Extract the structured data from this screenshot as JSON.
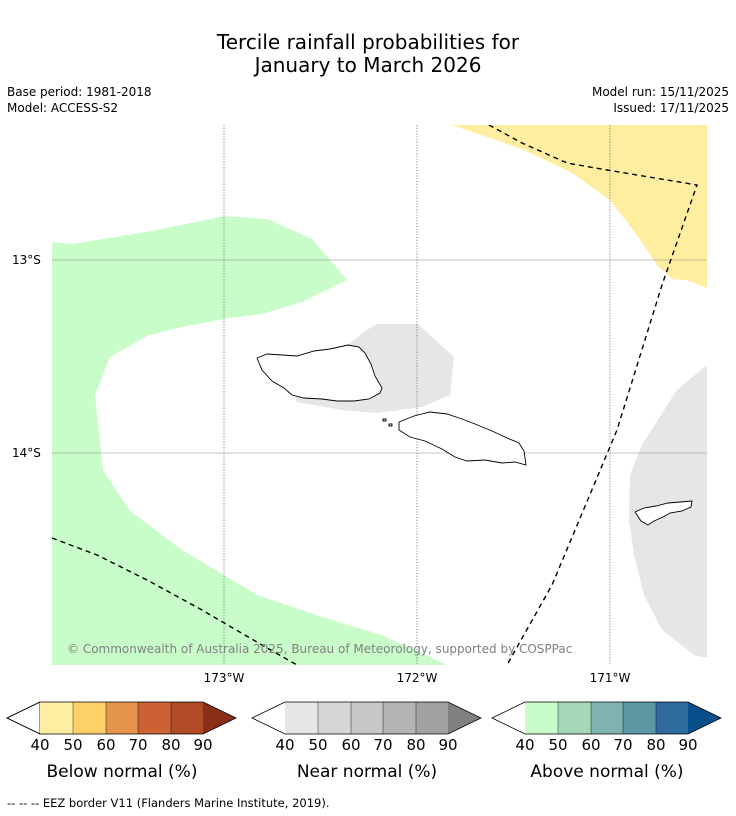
{
  "title_line1": "Tercile rainfall probabilities for",
  "title_line2": "January to March 2026",
  "meta": {
    "base_period": "Base period: 1981-2018",
    "model": "Model: ACCESS-S2",
    "model_run": "Model run: 15/11/2025",
    "issued": "Issued: 17/11/2025"
  },
  "axes": {
    "lat_labels": [
      "13°S",
      "14°S"
    ],
    "lon_labels": [
      "173°W",
      "172°W",
      "171°W"
    ]
  },
  "copyright": "© Commonwealth of Australia 2025, Bureau of Meteorology, supported by COSPPac",
  "legends": [
    {
      "label": "Below normal (%)",
      "ticks": [
        "40",
        "50",
        "60",
        "70",
        "80",
        "90"
      ],
      "colors": [
        "#ffeda0",
        "#fed069",
        "#e3944a",
        "#cc6133",
        "#b04a27",
        "#8b2e18"
      ]
    },
    {
      "label": "Near normal (%)",
      "ticks": [
        "40",
        "50",
        "60",
        "70",
        "80",
        "90"
      ],
      "colors": [
        "#e6e6e6",
        "#d6d6d6",
        "#c7c7c7",
        "#b3b3b3",
        "#a2a2a2",
        "#808080"
      ]
    },
    {
      "label": "Above normal (%)",
      "ticks": [
        "40",
        "50",
        "60",
        "70",
        "80",
        "90"
      ],
      "colors": [
        "#c8fcc8",
        "#a4d8b9",
        "#7fb3b0",
        "#5b96a2",
        "#2f6a9f",
        "#094f8c"
      ]
    }
  ],
  "footnote": "-- -- -- EEZ border V11 (Flanders Marine Institute, 2019).",
  "colors": {
    "above_light": "#c8fcc8",
    "below_light": "#ffeda0",
    "near_light": "#e6e6e6"
  }
}
